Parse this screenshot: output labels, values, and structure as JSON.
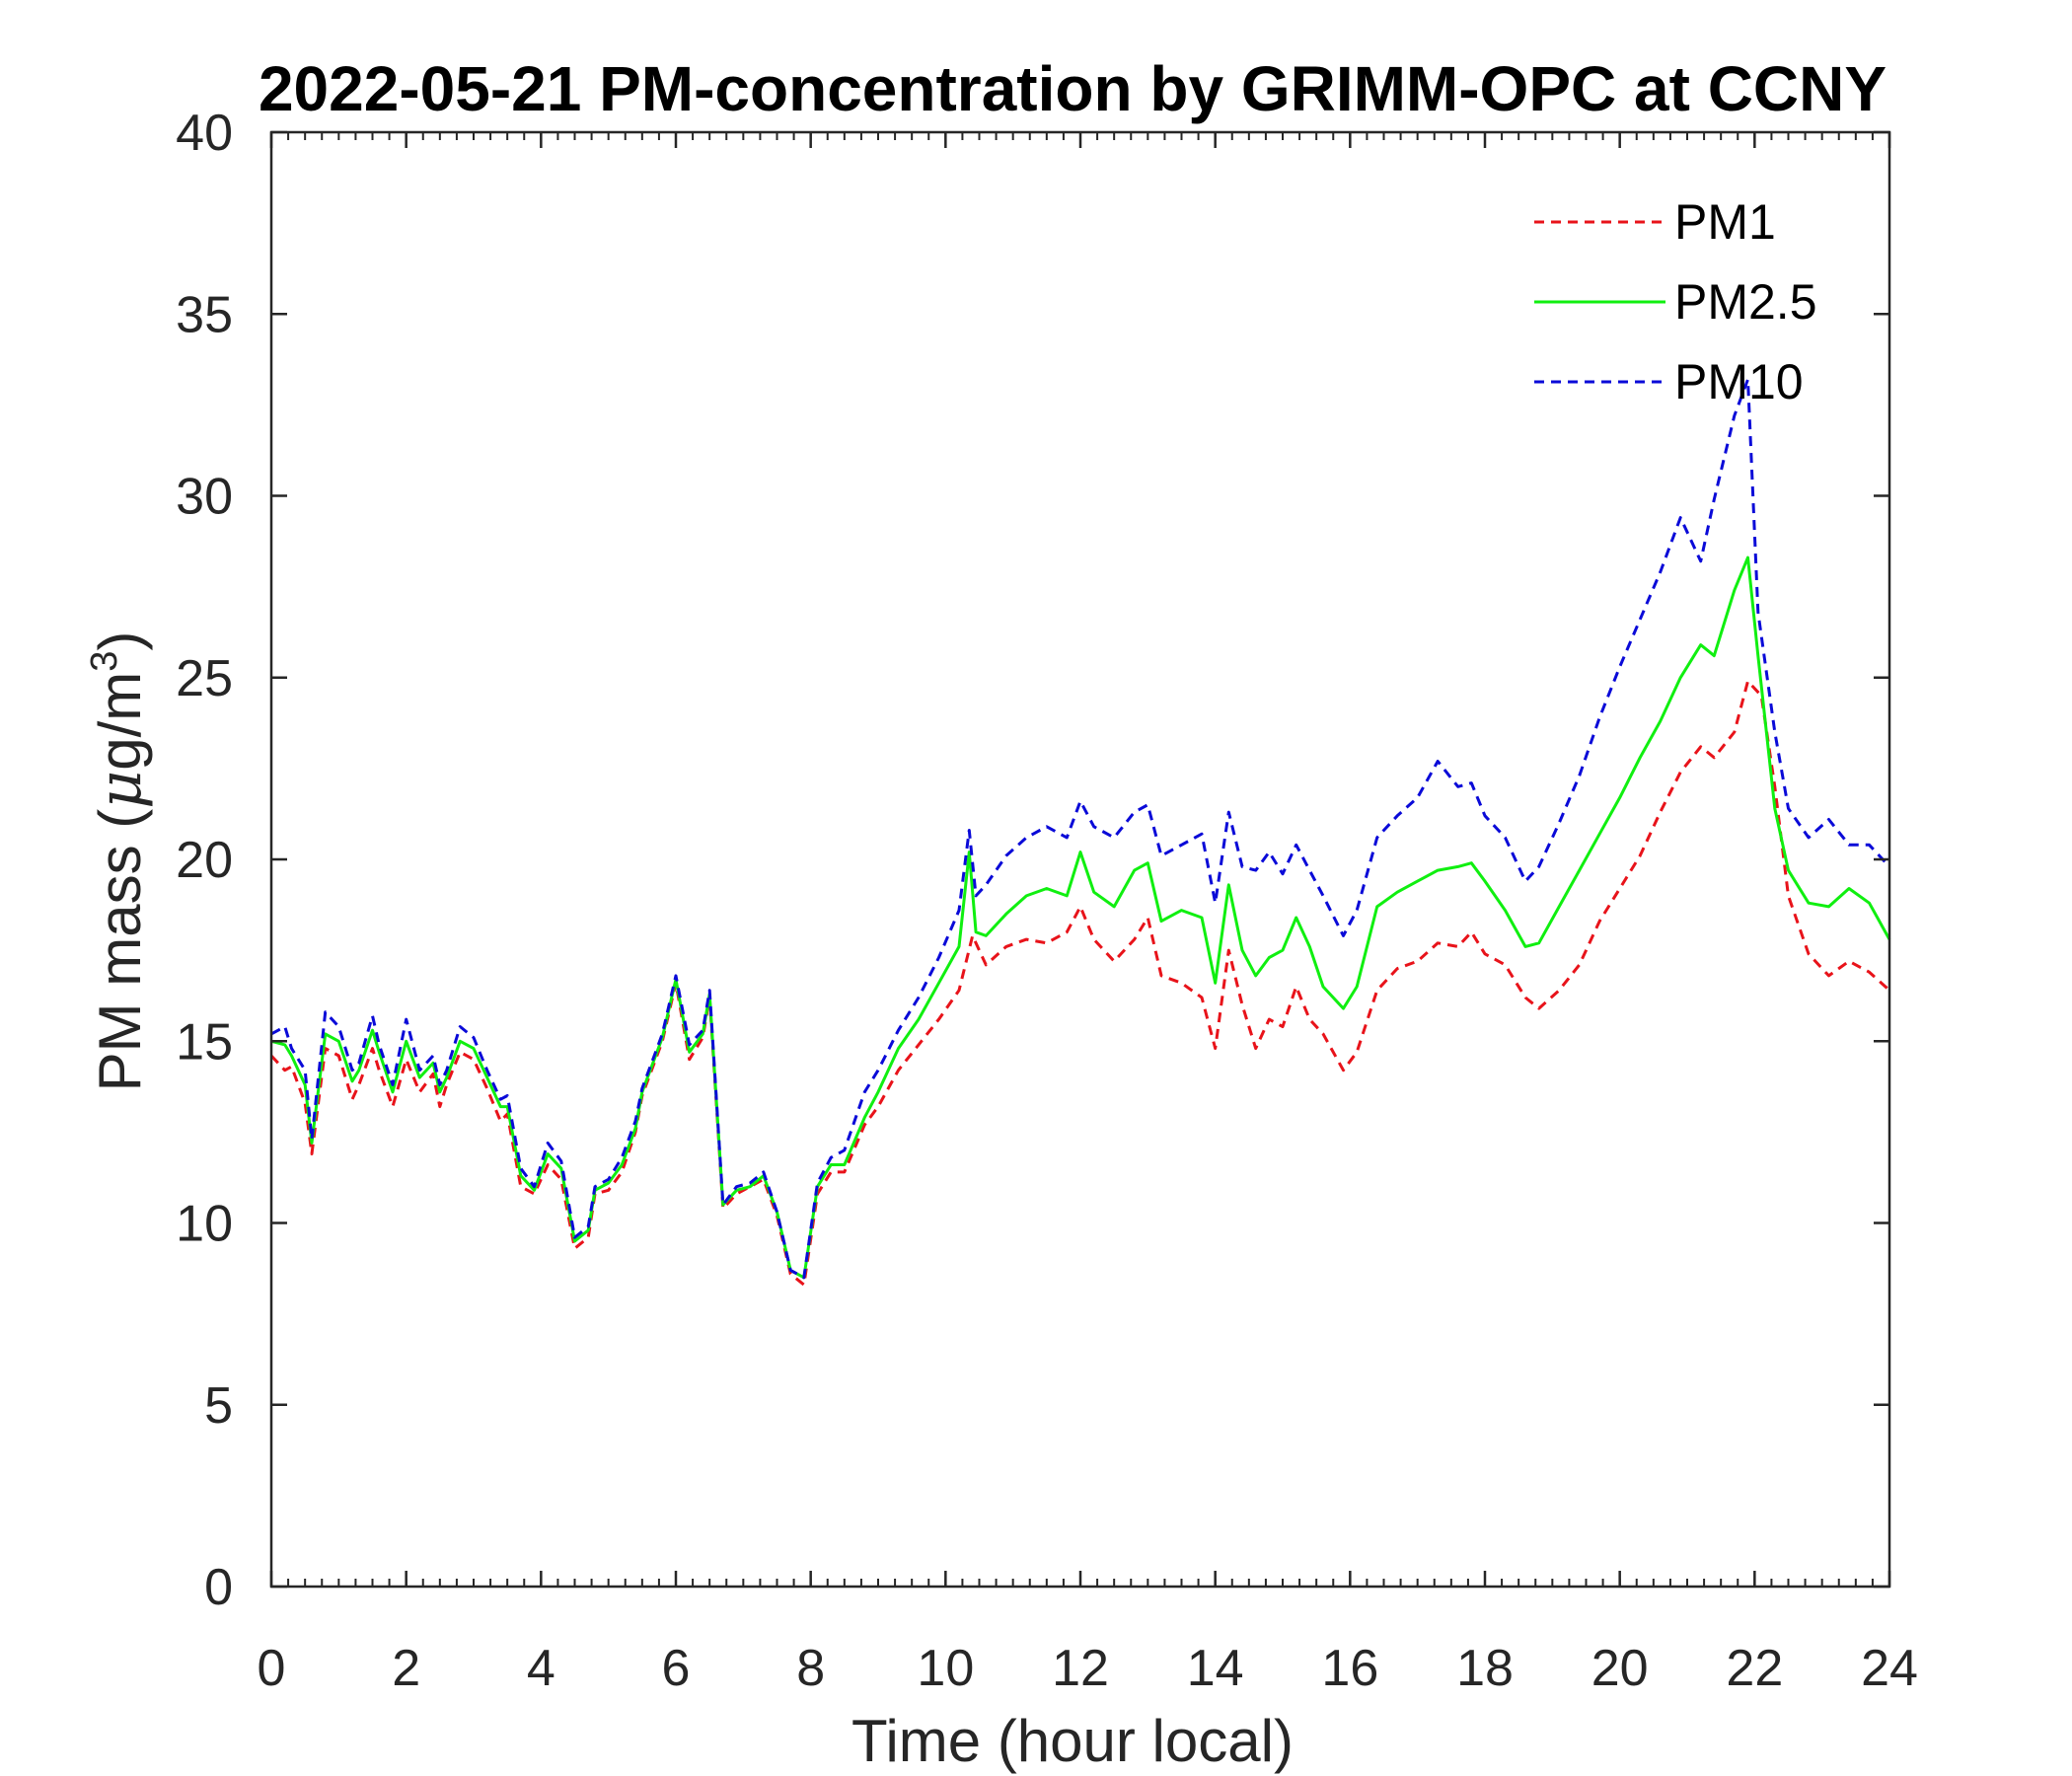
{
  "chart_data": {
    "type": "line",
    "title": "2022-05-21 PM-concentration by GRIMM-OPC at CCNY",
    "xlabel": "Time (hour local)",
    "ylabel_prefix": "PM mass (",
    "ylabel_mu": "μ",
    "ylabel_unit": "g/m",
    "ylabel_sup": "3",
    "ylabel_suffix": ")",
    "xlim": [
      0,
      24
    ],
    "ylim": [
      0,
      40
    ],
    "xticks": [
      "0",
      "2",
      "4",
      "6",
      "8",
      "10",
      "12",
      "14",
      "16",
      "18",
      "20",
      "22",
      "24"
    ],
    "yticks": [
      "0",
      "5",
      "10",
      "15",
      "20",
      "25",
      "30",
      "35",
      "40"
    ],
    "grid": false,
    "legend_position": "top-right",
    "series": [
      {
        "name": "PM1",
        "color": "#e8131a",
        "dash": "dashed",
        "x": [
          0,
          0.2,
          0.3,
          0.5,
          0.6,
          0.8,
          1.0,
          1.2,
          1.3,
          1.5,
          1.6,
          1.8,
          2.0,
          2.2,
          2.4,
          2.5,
          2.6,
          2.8,
          3.0,
          3.2,
          3.4,
          3.5,
          3.7,
          3.9,
          4.1,
          4.3,
          4.5,
          4.7,
          4.8,
          5.0,
          5.2,
          5.4,
          5.5,
          5.8,
          6.0,
          6.2,
          6.4,
          6.5,
          6.7,
          6.9,
          7.1,
          7.3,
          7.5,
          7.7,
          7.9,
          8.1,
          8.3,
          8.5,
          8.8,
          9.0,
          9.3,
          9.6,
          9.9,
          10.2,
          10.4,
          10.6,
          10.9,
          11.2,
          11.5,
          11.8,
          12.0,
          12.2,
          12.5,
          12.8,
          13.0,
          13.2,
          13.5,
          13.8,
          14.0,
          14.2,
          14.4,
          14.6,
          14.8,
          15.0,
          15.2,
          15.4,
          15.6,
          15.9,
          16.1,
          16.4,
          16.7,
          17.0,
          17.3,
          17.6,
          17.8,
          18.0,
          18.3,
          18.6,
          18.8,
          19.1,
          19.4,
          19.7,
          20.0,
          20.3,
          20.6,
          20.9,
          21.2,
          21.4,
          21.7,
          21.9,
          22.1,
          22.3,
          22.5,
          22.8,
          23.1,
          23.4,
          23.7,
          24.0
        ],
        "y": [
          14.6,
          14.2,
          14.3,
          13.3,
          11.9,
          14.8,
          14.6,
          13.4,
          13.8,
          14.8,
          14.2,
          13.2,
          14.5,
          13.6,
          14.1,
          13.2,
          13.8,
          14.7,
          14.5,
          13.7,
          12.8,
          13.0,
          11.0,
          10.8,
          11.6,
          11.2,
          9.3,
          9.6,
          10.8,
          10.9,
          11.4,
          12.5,
          13.5,
          15.0,
          16.6,
          14.5,
          15.1,
          16.2,
          10.4,
          10.8,
          11.0,
          11.2,
          10.2,
          8.6,
          8.3,
          10.8,
          11.4,
          11.4,
          12.7,
          13.2,
          14.2,
          14.9,
          15.6,
          16.4,
          17.9,
          17.1,
          17.6,
          17.8,
          17.7,
          18.0,
          18.7,
          17.8,
          17.2,
          17.8,
          18.4,
          16.8,
          16.6,
          16.2,
          14.8,
          17.5,
          16.0,
          14.8,
          15.6,
          15.4,
          16.5,
          15.6,
          15.2,
          14.2,
          14.7,
          16.4,
          17.0,
          17.2,
          17.7,
          17.6,
          18.0,
          17.4,
          17.1,
          16.2,
          15.9,
          16.4,
          17.1,
          18.3,
          19.2,
          20.1,
          21.3,
          22.4,
          23.1,
          22.8,
          23.5,
          24.9,
          24.5,
          22.0,
          19.0,
          17.4,
          16.8,
          17.2,
          16.9,
          16.4
        ]
      },
      {
        "name": "PM2.5",
        "color": "#10ef10",
        "dash": "solid",
        "x": [
          0,
          0.2,
          0.3,
          0.5,
          0.6,
          0.8,
          1.0,
          1.2,
          1.3,
          1.5,
          1.6,
          1.8,
          2.0,
          2.2,
          2.4,
          2.5,
          2.6,
          2.8,
          3.0,
          3.2,
          3.4,
          3.5,
          3.7,
          3.9,
          4.1,
          4.3,
          4.5,
          4.7,
          4.8,
          5.0,
          5.2,
          5.4,
          5.5,
          5.8,
          6.0,
          6.2,
          6.4,
          6.5,
          6.7,
          6.9,
          7.1,
          7.3,
          7.5,
          7.7,
          7.9,
          8.1,
          8.3,
          8.5,
          8.8,
          9.0,
          9.3,
          9.6,
          9.9,
          10.2,
          10.35,
          10.45,
          10.6,
          10.9,
          11.2,
          11.5,
          11.8,
          12.0,
          12.2,
          12.5,
          12.8,
          13.0,
          13.2,
          13.5,
          13.8,
          14.0,
          14.2,
          14.4,
          14.6,
          14.8,
          15.0,
          15.2,
          15.4,
          15.6,
          15.9,
          16.1,
          16.4,
          16.7,
          17.0,
          17.3,
          17.6,
          17.8,
          18.0,
          18.3,
          18.6,
          18.8,
          19.1,
          19.4,
          19.7,
          20.0,
          20.3,
          20.6,
          20.9,
          21.2,
          21.4,
          21.7,
          21.9,
          22.05,
          22.3,
          22.5,
          22.8,
          23.1,
          23.4,
          23.7,
          24.0
        ],
        "y": [
          15.0,
          14.9,
          14.6,
          13.8,
          12.2,
          15.2,
          15.0,
          13.9,
          14.2,
          15.3,
          14.7,
          13.6,
          15.0,
          14.0,
          14.4,
          13.6,
          14.0,
          15.0,
          14.8,
          14.0,
          13.2,
          13.2,
          11.3,
          10.9,
          11.9,
          11.5,
          9.5,
          9.8,
          10.9,
          11.1,
          11.6,
          12.6,
          13.6,
          15.1,
          16.7,
          14.7,
          15.2,
          16.3,
          10.5,
          10.9,
          11.0,
          11.3,
          10.3,
          8.7,
          8.5,
          11.0,
          11.6,
          11.6,
          12.9,
          13.6,
          14.8,
          15.6,
          16.6,
          17.6,
          20.2,
          18.0,
          17.9,
          18.5,
          19.0,
          19.2,
          19.0,
          20.2,
          19.1,
          18.7,
          19.7,
          19.9,
          18.3,
          18.6,
          18.4,
          16.6,
          19.3,
          17.5,
          16.8,
          17.3,
          17.5,
          18.4,
          17.6,
          16.5,
          15.9,
          16.5,
          18.7,
          19.1,
          19.4,
          19.7,
          19.8,
          19.9,
          19.4,
          18.6,
          17.6,
          17.7,
          18.7,
          19.7,
          20.7,
          21.7,
          22.8,
          23.8,
          25.0,
          25.9,
          25.6,
          27.4,
          28.3,
          25.6,
          21.4,
          19.7,
          18.8,
          18.7,
          19.2,
          18.8,
          17.8
        ]
      },
      {
        "name": "PM10",
        "color": "#0a0ad8",
        "dash": "dashed",
        "x": [
          0,
          0.2,
          0.3,
          0.5,
          0.6,
          0.8,
          1.0,
          1.2,
          1.3,
          1.5,
          1.6,
          1.8,
          2.0,
          2.2,
          2.4,
          2.5,
          2.6,
          2.8,
          3.0,
          3.2,
          3.4,
          3.5,
          3.7,
          3.9,
          4.1,
          4.3,
          4.5,
          4.7,
          4.8,
          5.0,
          5.2,
          5.4,
          5.5,
          5.8,
          6.0,
          6.2,
          6.4,
          6.5,
          6.7,
          6.9,
          7.1,
          7.3,
          7.5,
          7.7,
          7.9,
          8.1,
          8.3,
          8.5,
          8.8,
          9.0,
          9.3,
          9.6,
          9.9,
          10.2,
          10.35,
          10.45,
          10.6,
          10.9,
          11.2,
          11.5,
          11.8,
          12.0,
          12.2,
          12.5,
          12.8,
          13.0,
          13.2,
          13.5,
          13.8,
          14.0,
          14.2,
          14.4,
          14.6,
          14.8,
          15.0,
          15.2,
          15.4,
          15.6,
          15.9,
          16.1,
          16.4,
          16.7,
          17.0,
          17.3,
          17.6,
          17.8,
          18.0,
          18.3,
          18.6,
          18.8,
          19.1,
          19.4,
          19.7,
          20.0,
          20.3,
          20.6,
          20.9,
          21.2,
          21.4,
          21.7,
          21.9,
          22.05,
          22.3,
          22.5,
          22.8,
          23.1,
          23.4,
          23.7,
          24.0
        ],
        "y": [
          15.2,
          15.4,
          14.8,
          14.2,
          12.3,
          15.8,
          15.4,
          14.2,
          14.4,
          15.7,
          14.9,
          13.8,
          15.6,
          14.2,
          14.6,
          13.8,
          14.2,
          15.4,
          15.1,
          14.2,
          13.4,
          13.5,
          11.5,
          11.0,
          12.2,
          11.7,
          9.6,
          9.9,
          11.0,
          11.2,
          11.8,
          12.8,
          13.7,
          15.2,
          16.8,
          14.9,
          15.3,
          16.4,
          10.5,
          11.0,
          11.1,
          11.4,
          10.3,
          8.7,
          8.5,
          11.1,
          11.8,
          12.0,
          13.6,
          14.2,
          15.3,
          16.2,
          17.3,
          18.6,
          20.8,
          19.0,
          19.3,
          20.1,
          20.6,
          20.9,
          20.6,
          21.6,
          20.9,
          20.6,
          21.3,
          21.5,
          20.1,
          20.4,
          20.7,
          18.8,
          21.3,
          19.8,
          19.7,
          20.2,
          19.6,
          20.4,
          19.7,
          19.0,
          17.9,
          18.6,
          20.6,
          21.2,
          21.7,
          22.7,
          22.0,
          22.1,
          21.2,
          20.6,
          19.4,
          19.8,
          21.0,
          22.3,
          23.9,
          25.3,
          26.6,
          27.9,
          29.4,
          28.2,
          29.9,
          32.2,
          33.2,
          26.8,
          23.5,
          21.4,
          20.6,
          21.1,
          20.4,
          20.4,
          19.8
        ]
      }
    ]
  }
}
